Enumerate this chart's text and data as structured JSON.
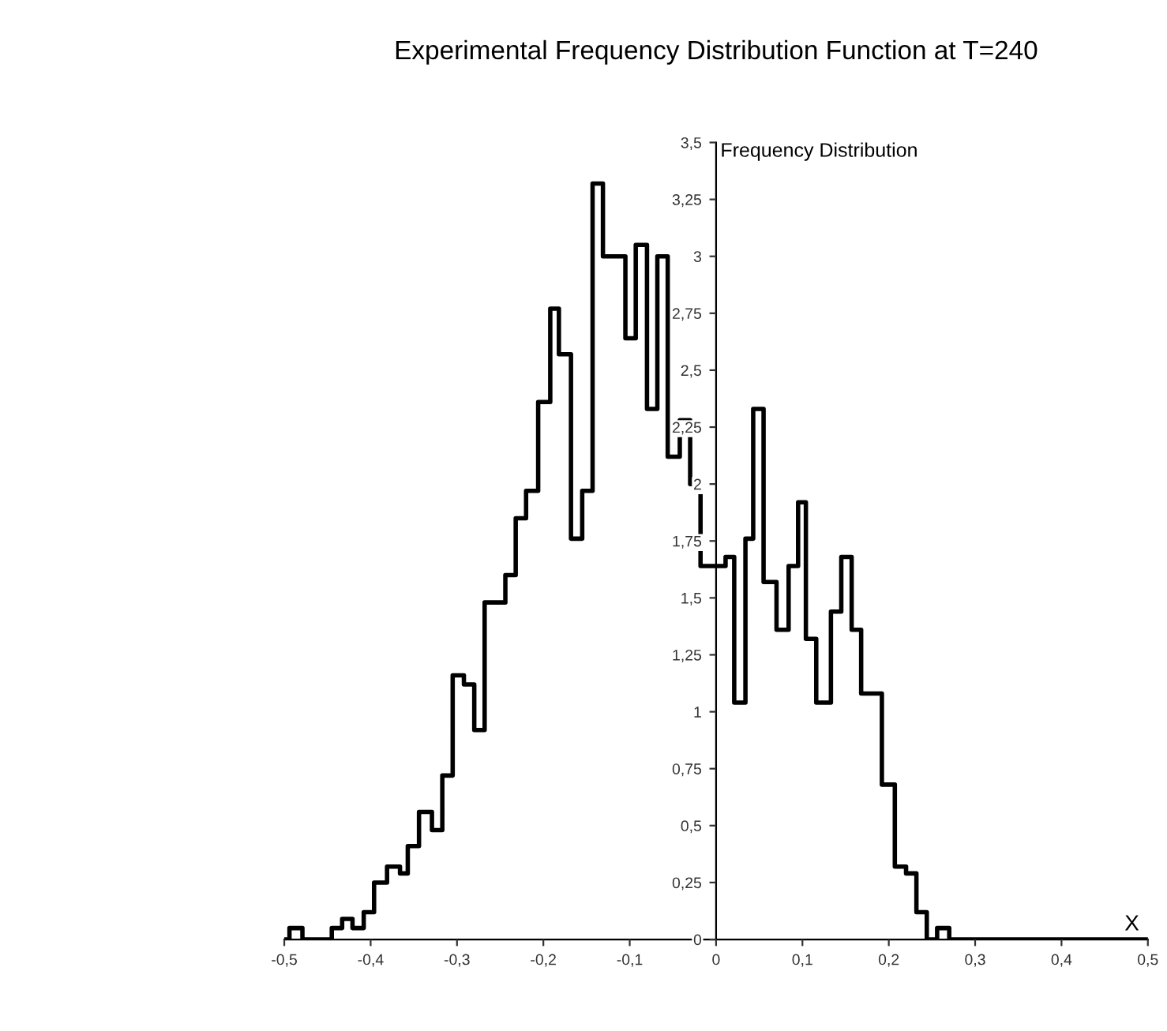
{
  "chart_data": {
    "type": "step",
    "title": "Experimental Frequency Distribution Function at T=240",
    "xlabel": "X",
    "ylabel": "Frequency Distribution",
    "color": "#000000",
    "x": [
      -0.5,
      -0.494,
      -0.479,
      -0.445,
      -0.433,
      -0.421,
      -0.408,
      -0.396,
      -0.381,
      -0.366,
      -0.357,
      -0.344,
      -0.329,
      -0.317,
      -0.305,
      -0.292,
      -0.28,
      -0.268,
      -0.244,
      -0.232,
      -0.22,
      -0.206,
      -0.192,
      -0.182,
      -0.168,
      -0.155,
      -0.143,
      -0.131,
      -0.105,
      -0.093,
      -0.08,
      -0.068,
      -0.056,
      -0.042,
      -0.03,
      -0.018,
      0.011,
      0.021,
      0.034,
      0.043,
      0.055,
      0.07,
      0.084,
      0.095,
      0.104,
      0.116,
      0.133,
      0.145,
      0.157,
      0.168,
      0.192,
      0.207,
      0.22,
      0.232,
      0.244,
      0.256,
      0.27,
      0.5
    ],
    "values": [
      0,
      0.05,
      0,
      0.05,
      0.09,
      0.05,
      0.12,
      0.25,
      0.32,
      0.29,
      0.41,
      0.56,
      0.48,
      0.72,
      1.16,
      1.12,
      0.92,
      1.48,
      1.6,
      1.85,
      1.97,
      2.36,
      2.77,
      2.57,
      1.76,
      1.97,
      3.32,
      3.0,
      2.64,
      3.05,
      2.33,
      3.0,
      2.12,
      2.28,
      2.0,
      1.64,
      1.68,
      1.04,
      1.76,
      2.33,
      1.57,
      1.36,
      1.64,
      1.92,
      1.32,
      1.04,
      1.44,
      1.68,
      1.36,
      1.08,
      0.68,
      0.32,
      0.29,
      0.12,
      0,
      0.05,
      0,
      0
    ],
    "xlim": [
      -0.5,
      0.5
    ],
    "ylim": [
      0,
      3.5
    ],
    "xticks": [
      {
        "value": -0.5,
        "label": "-0,5"
      },
      {
        "value": -0.4,
        "label": "-0,4"
      },
      {
        "value": -0.3,
        "label": "-0,3"
      },
      {
        "value": -0.2,
        "label": "-0,2"
      },
      {
        "value": -0.1,
        "label": "-0,1"
      },
      0,
      {
        "value": 0.1,
        "label": "0,1"
      },
      {
        "value": 0.2,
        "label": "0,2"
      },
      {
        "value": 0.3,
        "label": "0,3"
      },
      {
        "value": 0.4,
        "label": "0,4"
      },
      {
        "value": 0.5,
        "label": "0,5"
      }
    ],
    "yticks": [
      0,
      {
        "value": 0.25,
        "label": "0,25"
      },
      {
        "value": 0.5,
        "label": "0,5"
      },
      {
        "value": 0.75,
        "label": "0,75"
      },
      1,
      {
        "value": 1.25,
        "label": "1,25"
      },
      {
        "value": 1.5,
        "label": "1,5"
      },
      {
        "value": 1.75,
        "label": "1,75"
      },
      2,
      {
        "value": 2.25,
        "label": "2,25"
      },
      {
        "value": 2.5,
        "label": "2,5"
      },
      {
        "value": 2.75,
        "label": "2,75"
      },
      3,
      {
        "value": 3.25,
        "label": "3,25"
      },
      {
        "value": 3.5,
        "label": "3,5"
      }
    ],
    "grid": false
  }
}
